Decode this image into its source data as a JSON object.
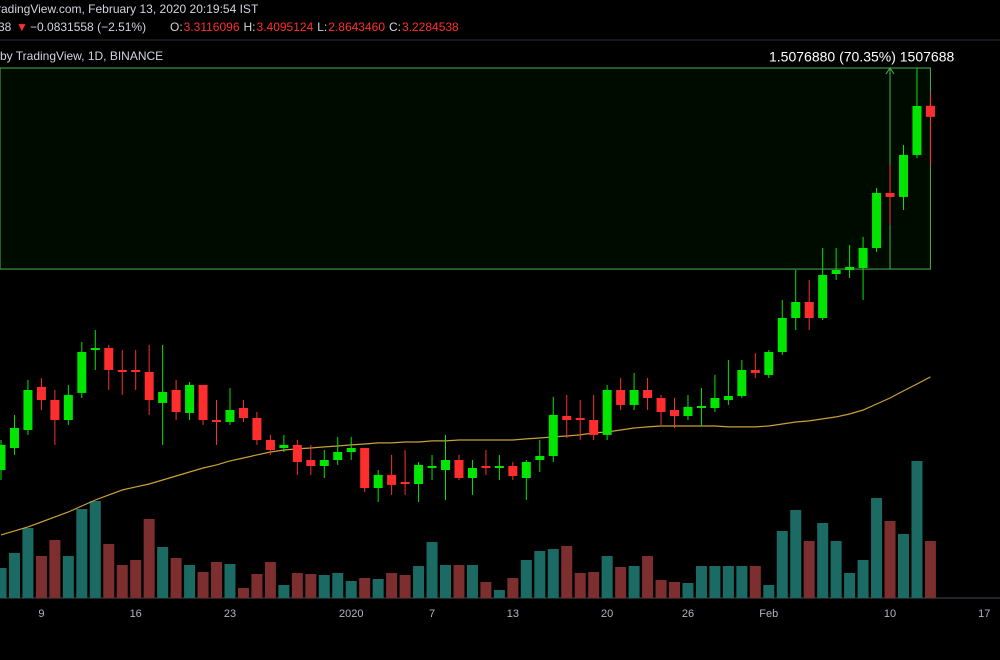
{
  "header": {
    "source": "radingView.com, February 13, 2020 20:19:54 IST",
    "last": "38",
    "arrow": "▼",
    "change": "−0.0831558 (−2.51%)",
    "ohlc": [
      {
        "label": "O:",
        "value": "3.3116096"
      },
      {
        "label": "H:",
        "value": "3.4095124"
      },
      {
        "label": "L:",
        "value": "2.8643460"
      },
      {
        "label": "C:",
        "value": "3.2284538"
      }
    ],
    "symbol": "by TradingView, 1D, BINANCE"
  },
  "chart_data": {
    "type": "candlestick",
    "categories": [
      null,
      null,
      null,
      "9",
      null,
      null,
      null,
      null,
      null,
      null,
      "16",
      null,
      null,
      null,
      null,
      null,
      null,
      "23",
      null,
      null,
      null,
      null,
      null,
      null,
      null,
      null,
      "2020",
      null,
      null,
      null,
      null,
      null,
      "7",
      null,
      null,
      null,
      null,
      null,
      "13",
      null,
      null,
      null,
      null,
      null,
      null,
      "20",
      null,
      null,
      null,
      null,
      null,
      "26",
      null,
      null,
      null,
      null,
      null,
      "Feb",
      null,
      null,
      null,
      null,
      null,
      null,
      null,
      null,
      "10",
      null,
      null,
      null,
      null,
      null,
      null,
      "17"
    ],
    "open": [
      0.58,
      0.745,
      0.88,
      1.203,
      1.105,
      0.955,
      1.158,
      1.48,
      1.495,
      1.33,
      1.33,
      1.315,
      1.083,
      1.18,
      1.008,
      1.218,
      0.955,
      0.94,
      1.045,
      0.97,
      0.805,
      0.745,
      0.768,
      0.655,
      0.61,
      0.655,
      0.715,
      0.745,
      0.445,
      0.543,
      0.49,
      0.475,
      0.595,
      0.58,
      0.655,
      0.52,
      0.61,
      0.595,
      0.61,
      0.52,
      0.655,
      0.685,
      0.985,
      0.97,
      0.955,
      0.843,
      1.18,
      1.068,
      1.18,
      1.12,
      1.03,
      0.985,
      1.045,
      1.045,
      1.105,
      1.135,
      1.33,
      1.293,
      1.465,
      1.72,
      1.84,
      1.72,
      2.05,
      2.08,
      2.095,
      2.245,
      2.658,
      2.628,
      2.943,
      3.3116096,
      null,
      null,
      null,
      null
    ],
    "high": [
      0.805,
      0.993,
      1.255,
      1.27,
      1.18,
      1.218,
      1.54,
      1.63,
      1.518,
      1.48,
      1.48,
      1.518,
      1.518,
      1.255,
      1.24,
      1.218,
      1.105,
      1.195,
      1.105,
      1.015,
      0.843,
      0.843,
      0.805,
      0.768,
      0.73,
      0.828,
      0.828,
      0.745,
      0.58,
      0.693,
      0.73,
      0.64,
      0.693,
      0.843,
      0.693,
      0.655,
      0.73,
      0.693,
      0.64,
      0.655,
      0.805,
      1.128,
      1.143,
      1.105,
      1.143,
      1.218,
      1.27,
      1.308,
      1.27,
      1.143,
      1.12,
      1.143,
      1.195,
      1.293,
      1.405,
      1.405,
      1.458,
      1.48,
      1.855,
      2.08,
      2.005,
      2.245,
      2.245,
      2.268,
      2.328,
      2.695,
      2.868,
      3.018,
      3.595,
      3.4095124,
      null,
      null,
      null,
      null
    ],
    "low": [
      0.505,
      0.693,
      0.843,
      1.03,
      0.768,
      0.918,
      1.12,
      1.33,
      1.18,
      1.143,
      1.18,
      0.993,
      0.768,
      0.955,
      0.955,
      0.918,
      0.768,
      0.918,
      0.94,
      0.768,
      0.693,
      0.715,
      0.543,
      0.543,
      0.52,
      0.618,
      0.655,
      0.415,
      0.34,
      0.393,
      0.393,
      0.34,
      0.505,
      0.355,
      0.505,
      0.393,
      0.543,
      0.505,
      0.505,
      0.355,
      0.565,
      0.64,
      0.82,
      0.805,
      0.805,
      0.805,
      1.03,
      1.03,
      1.03,
      0.918,
      0.895,
      0.955,
      0.91,
      1.015,
      1.068,
      1.12,
      1.27,
      1.27,
      1.443,
      1.63,
      1.63,
      1.705,
      2.005,
      2.02,
      1.855,
      2.215,
      2.418,
      2.53,
      2.92,
      2.864346,
      null,
      null,
      null,
      null
    ],
    "close": [
      0.768,
      0.895,
      1.18,
      1.105,
      0.955,
      1.143,
      1.465,
      1.495,
      1.33,
      1.315,
      1.315,
      1.105,
      1.165,
      1.015,
      1.218,
      0.955,
      0.94,
      1.03,
      0.97,
      0.805,
      0.73,
      0.768,
      0.64,
      0.61,
      0.655,
      0.715,
      0.745,
      0.445,
      0.543,
      0.468,
      0.475,
      0.618,
      0.61,
      0.655,
      0.52,
      0.595,
      0.595,
      0.61,
      0.535,
      0.64,
      0.685,
      0.993,
      0.955,
      0.955,
      0.843,
      1.18,
      1.068,
      1.18,
      1.12,
      1.015,
      0.985,
      1.053,
      1.06,
      1.12,
      1.135,
      1.33,
      1.308,
      1.465,
      1.72,
      1.84,
      1.72,
      2.043,
      2.08,
      2.103,
      2.245,
      2.658,
      2.628,
      2.943,
      3.31,
      3.2284538,
      null,
      null,
      null,
      null
    ],
    "volume": [
      30,
      45,
      70,
      42,
      58,
      42,
      89,
      97,
      54,
      33,
      38,
      79,
      51,
      40,
      33,
      26,
      36,
      34,
      10,
      24,
      36,
      13,
      25,
      24,
      23,
      25,
      17,
      20,
      19,
      25,
      23,
      32,
      56,
      33,
      33,
      33,
      16,
      8,
      20,
      38,
      47,
      49,
      52,
      25,
      26,
      42,
      31,
      32,
      42,
      18,
      16,
      15,
      32,
      32,
      32,
      32,
      32,
      13,
      67,
      88,
      57,
      75,
      57,
      25,
      38,
      100,
      77,
      64,
      137,
      57,
      null,
      null,
      null,
      null
    ],
    "ma": [
      0.093,
      0.123,
      0.153,
      0.19,
      0.228,
      0.265,
      0.31,
      0.355,
      0.393,
      0.43,
      0.453,
      0.475,
      0.505,
      0.535,
      0.565,
      0.595,
      0.618,
      0.648,
      0.67,
      0.693,
      0.715,
      0.73,
      0.738,
      0.745,
      0.753,
      0.76,
      0.768,
      0.775,
      0.783,
      0.783,
      0.79,
      0.79,
      0.798,
      0.798,
      0.805,
      0.805,
      0.805,
      0.805,
      0.805,
      0.813,
      0.82,
      0.828,
      0.835,
      0.843,
      0.858,
      0.865,
      0.88,
      0.895,
      0.903,
      0.91,
      0.91,
      0.91,
      0.91,
      0.91,
      0.903,
      0.903,
      0.903,
      0.91,
      0.925,
      0.94,
      0.948,
      0.963,
      0.978,
      1.0,
      1.03,
      1.075,
      1.12,
      1.173,
      1.225,
      1.278,
      null,
      null,
      null,
      null
    ],
    "ylim": [
      -0.38,
      3.7675
    ],
    "vlim": [
      0,
      140
    ],
    "up_color": "#00e600",
    "down_color": "#ff2e2e",
    "volume_up_color": "#1b6b64",
    "volume_down_color": "#7d2e2e",
    "ma_color": "#c9a13a",
    "measure": {
      "label": "1.5076880 (70.35%) 1507688",
      "from": 2.087,
      "to": 3.595,
      "color": "#4caf50"
    }
  }
}
